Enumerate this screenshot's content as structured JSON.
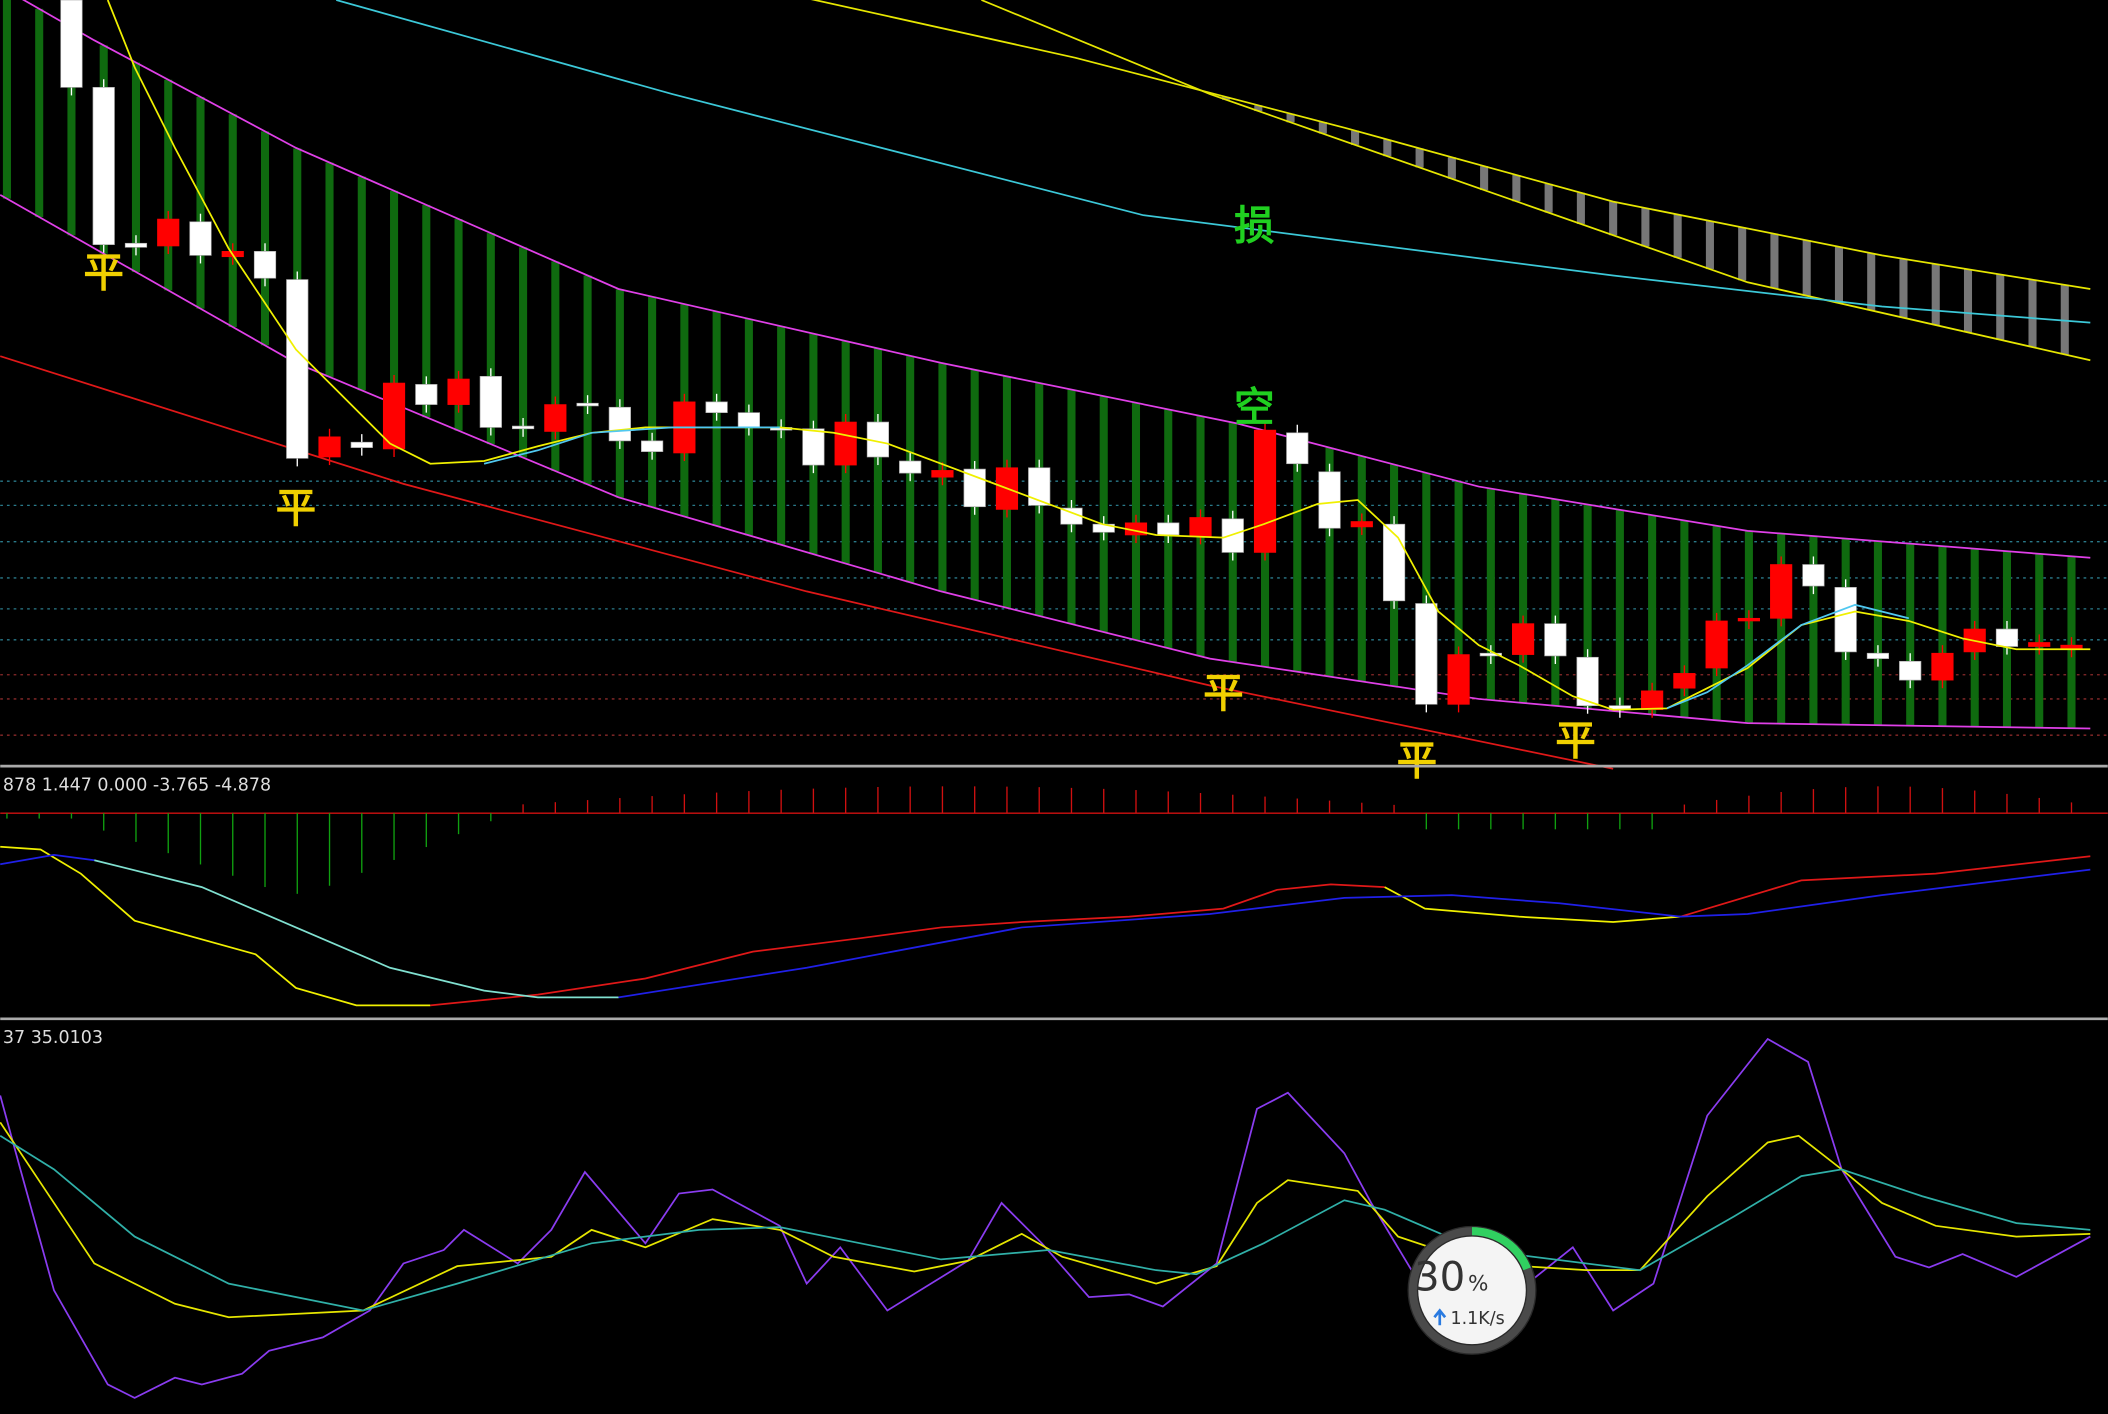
{
  "main_panel": {
    "markers": [
      {
        "text": "平"
      },
      {
        "text": "平"
      },
      {
        "text": "平"
      },
      {
        "text": "平"
      },
      {
        "text": "平"
      },
      {
        "text": "损"
      },
      {
        "text": "空"
      }
    ]
  },
  "indicator_panel_1": {
    "label": "878 1.447 0.000 -3.765 -4.878"
  },
  "indicator_panel_2": {
    "label": "37 35.0103"
  },
  "network_widget": {
    "percent": "30",
    "percent_sign": "%",
    "speed": "1.1K/s"
  }
}
